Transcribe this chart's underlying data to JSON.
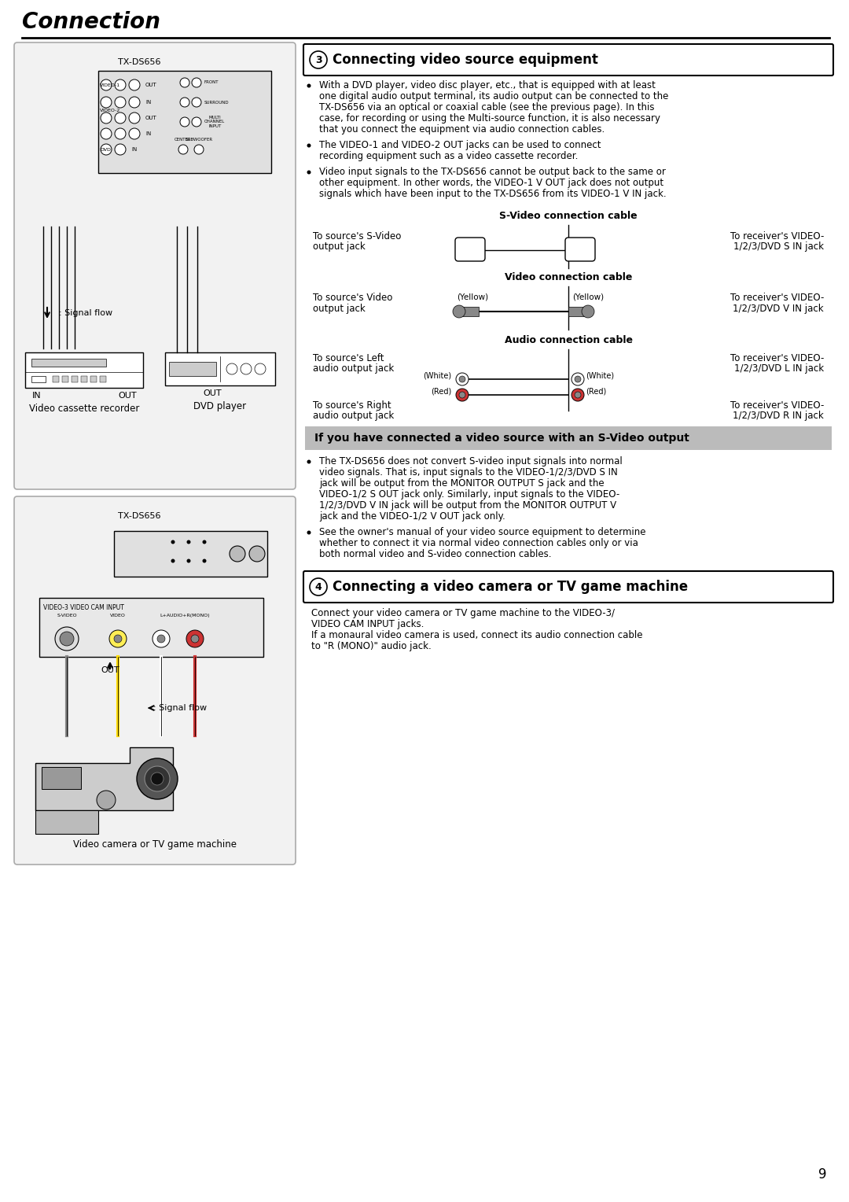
{
  "page_title": "Connection",
  "page_number": "9",
  "bg_color": "#ffffff",
  "section3_title": "Connecting video source equipment",
  "section3_bullet1_lines": [
    "With a DVD player, video disc player, etc., that is equipped with at least",
    "one digital audio output terminal, its audio output can be connected to the",
    "TX-DS656 via an optical or coaxial cable (see the previous page). In this",
    "case, for recording or using the Multi-source function, it is also necessary",
    "that you connect the equipment via audio connection cables."
  ],
  "section3_bullet2_lines": [
    "The VIDEO-1 and VIDEO-2 OUT jacks can be used to connect",
    "recording equipment such as a video cassette recorder."
  ],
  "section3_bullet3_lines": [
    "Video input signals to the TX-DS656 cannot be output back to the same or",
    "other equipment. In other words, the VIDEO-1 V OUT jack does not output",
    "signals which have been input to the TX-DS656 from its VIDEO-1 V IN jack."
  ],
  "svideo_cable_label": "S-Video connection cable",
  "svideo_left_line1": "To source's S-Video",
  "svideo_left_line2": "output jack",
  "svideo_right_line1": "To receiver's VIDEO-",
  "svideo_right_line2": "1/2/3/DVD S IN jack",
  "video_cable_label": "Video connection cable",
  "video_left_line1": "To source's Video",
  "video_left_line2": "output jack",
  "video_right_line1": "To receiver's VIDEO-",
  "video_right_line2": "1/2/3/DVD V IN jack",
  "yellow_left": "(Yellow)",
  "yellow_right": "(Yellow)",
  "audio_cable_label": "Audio connection cable",
  "audio_left_top1": "To source's Left",
  "audio_left_top2": "audio output jack",
  "audio_right_top1": "To receiver's VIDEO-",
  "audio_right_top2": "1/2/3/DVD L IN jack",
  "audio_left_bot1": "To source's Right",
  "audio_left_bot2": "audio output jack",
  "audio_right_bot1": "To receiver's VIDEO-",
  "audio_right_bot2": "1/2/3/DVD R IN jack",
  "white_label": "(White)",
  "red_label": "(Red)",
  "svideo_box_title": "If you have connected a video source with an S-Video output",
  "svideo_box_bullet1_lines": [
    "The TX-DS656 does not convert S-video input signals into normal",
    "video signals. That is, input signals to the VIDEO-1/2/3/DVD S IN",
    "jack will be output from the MONITOR OUTPUT S jack and the",
    "VIDEO-1/2 S OUT jack only. Similarly, input signals to the VIDEO-",
    "1/2/3/DVD V IN jack will be output from the MONITOR OUTPUT V",
    "jack and the VIDEO-1/2 V OUT jack only."
  ],
  "svideo_box_bullet2_lines": [
    "See the owner's manual of your video source equipment to determine",
    "whether to connect it via normal video connection cables only or via",
    "both normal video and S-video connection cables."
  ],
  "section4_title": "Connecting a video camera or TV game machine",
  "section4_text_lines": [
    "Connect your video camera or TV game machine to the VIDEO-3/",
    "VIDEO CAM INPUT jacks.",
    "If a monaural video camera is used, connect its audio connection cable",
    "to \"R (MONO)\" audio jack."
  ],
  "lbox1_title": "TX-DS656",
  "lbox1_device1": "Video cassette recorder",
  "lbox1_device2": "DVD player",
  "signal_flow_label": ": Signal flow",
  "lbox2_title": "TX-DS656",
  "lbox2_device": "Video camera or TV game machine",
  "in_label": "IN",
  "out_label": "OUT"
}
